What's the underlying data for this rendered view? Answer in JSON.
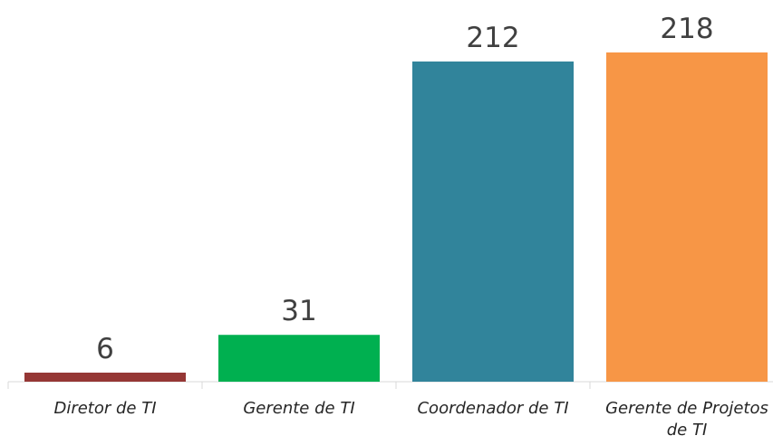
{
  "chart_data": {
    "type": "bar",
    "categories": [
      "Diretor de TI",
      "Gerente de TI",
      "Coordenador de TI",
      "Gerente de Projetos de TI"
    ],
    "values": [
      6,
      31,
      212,
      218
    ],
    "colors": [
      "#953735",
      "#00b050",
      "#31849b",
      "#f79646"
    ]
  }
}
